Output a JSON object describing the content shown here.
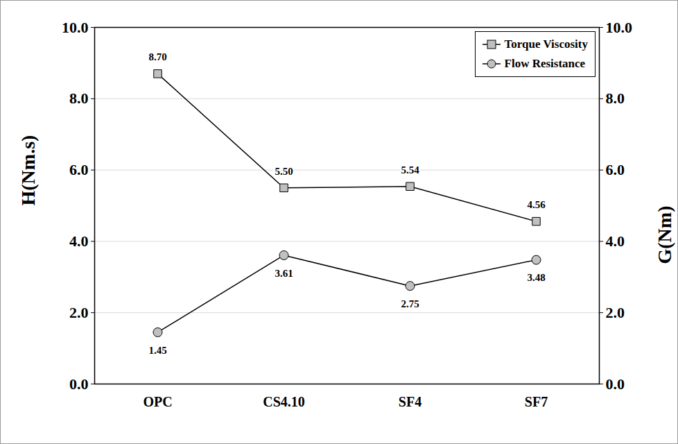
{
  "chart_data": {
    "type": "line",
    "categories": [
      "OPC",
      "CS4.10",
      "SF4",
      "SF7"
    ],
    "y_label": "H(Nm.s)",
    "y2_label": "G(Nm)",
    "ylim": [
      0,
      10
    ],
    "yticks": [
      {
        "value": 0,
        "label": "0.0"
      },
      {
        "value": 2,
        "label": "2.0"
      },
      {
        "value": 4,
        "label": "4.0"
      },
      {
        "value": 6,
        "label": "6.0"
      },
      {
        "value": 8,
        "label": "8.0"
      },
      {
        "value": 10,
        "label": "10.0"
      }
    ],
    "y2lim": [
      0,
      10
    ],
    "y2ticks": [
      {
        "value": 0,
        "label": "0.0"
      },
      {
        "value": 2,
        "label": "2.0"
      },
      {
        "value": 4,
        "label": "4.0"
      },
      {
        "value": 6,
        "label": "6.0"
      },
      {
        "value": 8,
        "label": "8.0"
      },
      {
        "value": 10,
        "label": "10.0"
      }
    ],
    "grid": true,
    "legend": "top-right",
    "data_labels": true,
    "series": [
      {
        "name": "Torque Viscosity",
        "color": "#000000",
        "marker": "square",
        "values": [
          8.7,
          5.5,
          5.54,
          4.56
        ],
        "value_labels": [
          "8.70",
          "5.50",
          "5.54",
          "4.56"
        ]
      },
      {
        "name": "Flow Resistance",
        "color": "#000000",
        "marker": "circle",
        "axis": "y2",
        "values": [
          1.45,
          3.61,
          2.75,
          3.48
        ],
        "value_labels": [
          "1.45",
          "3.61",
          "2.75",
          "3.48"
        ]
      }
    ]
  }
}
